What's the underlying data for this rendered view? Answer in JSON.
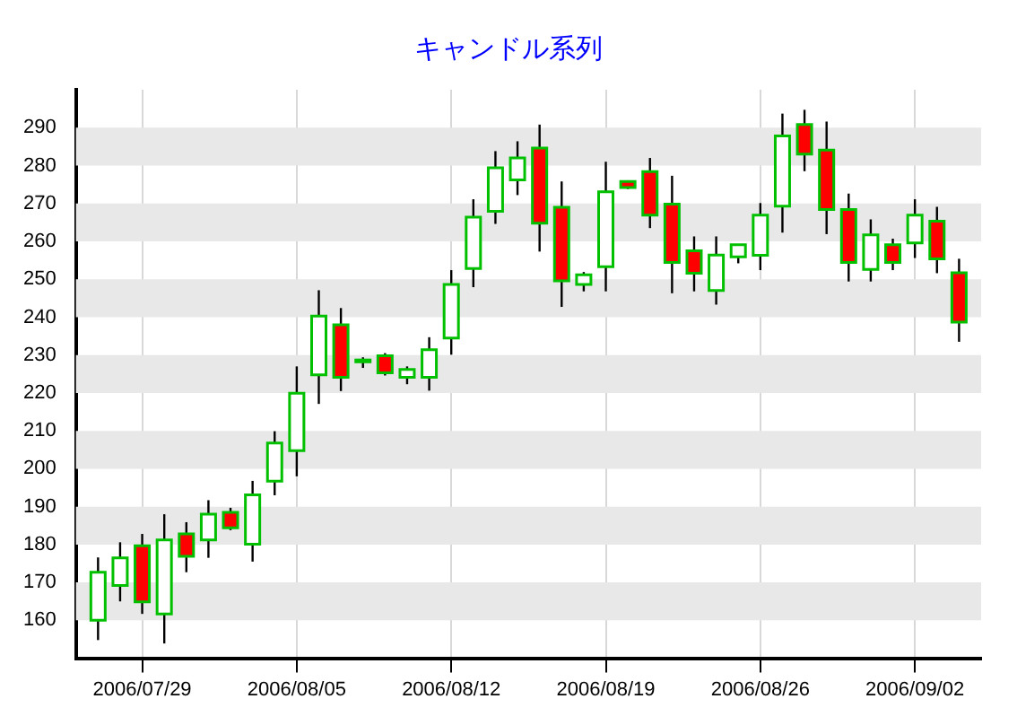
{
  "chart_data": {
    "type": "candlestick",
    "title": "キャンドル系列",
    "x": [
      "2006-07-27",
      "2006-07-28",
      "2006-07-29",
      "2006-07-30",
      "2006-07-31",
      "2006-08-01",
      "2006-08-02",
      "2006-08-03",
      "2006-08-04",
      "2006-08-05",
      "2006-08-06",
      "2006-08-07",
      "2006-08-08",
      "2006-08-09",
      "2006-08-10",
      "2006-08-11",
      "2006-08-12",
      "2006-08-13",
      "2006-08-14",
      "2006-08-15",
      "2006-08-16",
      "2006-08-17",
      "2006-08-18",
      "2006-08-19",
      "2006-08-20",
      "2006-08-21",
      "2006-08-22",
      "2006-08-23",
      "2006-08-24",
      "2006-08-25",
      "2006-08-26",
      "2006-08-27",
      "2006-08-28",
      "2006-08-29",
      "2006-08-30",
      "2006-08-31",
      "2006-09-01",
      "2006-09-02",
      "2006-09-03",
      "2006-09-04"
    ],
    "ohlc": [
      [
        160,
        176.6,
        154.8,
        172.7
      ],
      [
        169.2,
        180.6,
        165,
        176.5
      ],
      [
        179.7,
        182.8,
        161.7,
        164.9
      ],
      [
        161.7,
        188,
        153.9,
        181.2
      ],
      [
        182.8,
        185.9,
        172.7,
        176.9
      ],
      [
        181.2,
        191.7,
        176.5,
        188
      ],
      [
        188.5,
        189.7,
        183.8,
        184.4
      ],
      [
        180.1,
        196.8,
        175.5,
        193.1
      ],
      [
        196.7,
        209.9,
        193,
        206.8
      ],
      [
        204.8,
        227,
        198,
        219.9
      ],
      [
        224.8,
        247.1,
        217.1,
        240.3
      ],
      [
        238,
        242.4,
        220.5,
        224.1
      ],
      [
        228.2,
        229.4,
        226.6,
        228.7
      ],
      [
        229.8,
        230.5,
        224.6,
        225.3
      ],
      [
        224.1,
        227,
        222.3,
        226.2
      ],
      [
        224.1,
        234.7,
        220.6,
        231.4
      ],
      [
        234.5,
        252.4,
        230.1,
        248.6
      ],
      [
        252.8,
        271.1,
        247.9,
        266.4
      ],
      [
        267.9,
        283.8,
        264.6,
        279.4
      ],
      [
        276.2,
        286.4,
        272.2,
        282
      ],
      [
        284.6,
        290.8,
        257.3,
        264.8
      ],
      [
        269,
        275.8,
        242.7,
        249.6
      ],
      [
        248.6,
        251.9,
        246.8,
        251.2
      ],
      [
        253.3,
        281,
        246.8,
        273.1
      ],
      [
        275.8,
        276.1,
        273.8,
        274.2
      ],
      [
        278.4,
        282,
        263.5,
        266.9
      ],
      [
        269.8,
        277.3,
        246.3,
        254.4
      ],
      [
        257.5,
        261.3,
        246.8,
        251.6
      ],
      [
        247,
        261.3,
        243.3,
        256.4
      ],
      [
        255.9,
        259.1,
        254.2,
        259.1
      ],
      [
        256.3,
        270.1,
        252.4,
        266.9
      ],
      [
        269.3,
        293.7,
        262.3,
        287.8
      ],
      [
        290.8,
        294.7,
        278.5,
        283
      ],
      [
        284.1,
        291.6,
        261.9,
        268.4
      ],
      [
        268.4,
        272.6,
        249.4,
        254.4
      ],
      [
        252.6,
        265.8,
        249.4,
        261.7
      ],
      [
        259.1,
        260.7,
        252.4,
        254.4
      ],
      [
        259.6,
        271.1,
        255.6,
        266.9
      ],
      [
        265.3,
        269.1,
        251.6,
        255.4
      ],
      [
        251.7,
        255.4,
        233.5,
        238.7
      ]
    ],
    "colors": [
      "#ffffff",
      "#ffffff",
      "#ff0000",
      "#ffffff",
      "#ff0000",
      "#ffffff",
      "#ff0000",
      "#ffffff",
      "#ffffff",
      "#ffffff",
      "#ffffff",
      "#ff0000",
      "#ffffff",
      "#ff0000",
      "#ffffff",
      "#ffffff",
      "#ffffff",
      "#ffffff",
      "#ffffff",
      "#ffffff",
      "#ff0000",
      "#ff0000",
      "#ffffff",
      "#ffffff",
      "#ff0000",
      "#ff0000",
      "#ff0000",
      "#ff0000",
      "#ffffff",
      "#ffffff",
      "#ffffff",
      "#ffffff",
      "#ff0000",
      "#ff0000",
      "#ff0000",
      "#ffffff",
      "#ff0000",
      "#ffffff",
      "#ff0000",
      "#ff0000"
    ],
    "xlim": [
      "2006-07-26",
      "2006-09-05"
    ],
    "xticks": [
      {
        "value": "2006-07-29",
        "label": "2006/07/29"
      },
      {
        "value": "2006-08-05",
        "label": "2006/08/05"
      },
      {
        "value": "2006-08-12",
        "label": "2006/08/12"
      },
      {
        "value": "2006-08-19",
        "label": "2006/08/19"
      },
      {
        "value": "2006-08-26",
        "label": "2006/08/26"
      },
      {
        "value": "2006-09-02",
        "label": "2006/09/02"
      }
    ],
    "ylim": [
      150,
      300
    ],
    "yticks": [
      160,
      170,
      180,
      190,
      200,
      210,
      220,
      230,
      240,
      250,
      260,
      270,
      280,
      290
    ],
    "grid": true
  }
}
